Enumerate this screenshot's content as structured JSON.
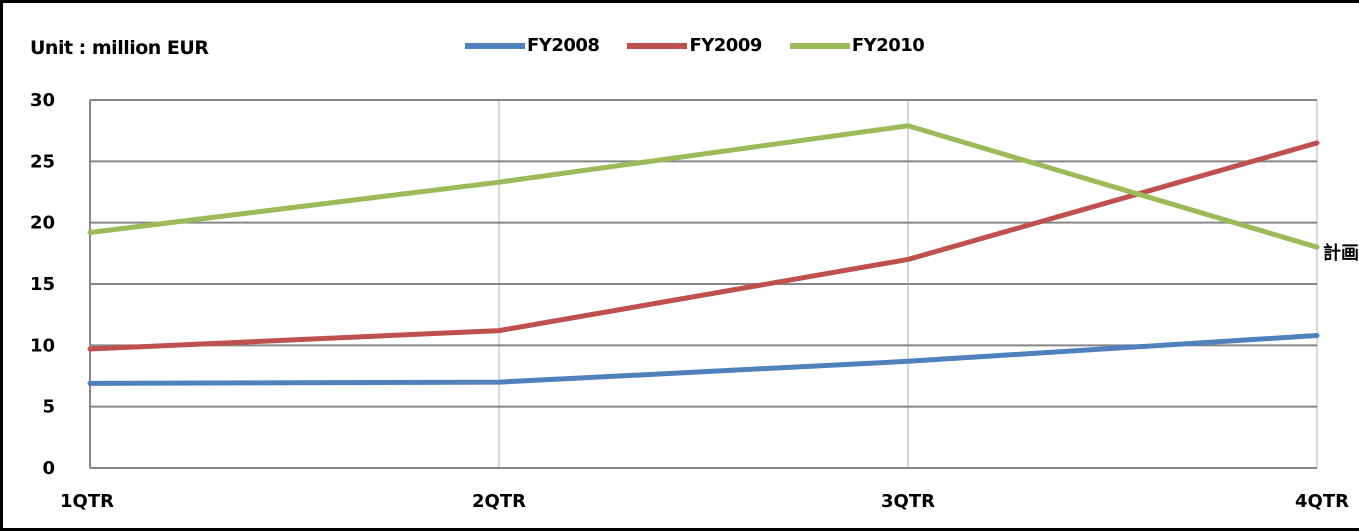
{
  "chart_data": {
    "type": "line",
    "unit_label": "Unit : million EUR",
    "categories": [
      "1QTR",
      "2QTR",
      "3QTR",
      "4QTR"
    ],
    "series": [
      {
        "name": "FY2008",
        "color": "#4f81bd",
        "values": [
          6.9,
          7.0,
          8.7,
          10.8
        ]
      },
      {
        "name": "FY2009",
        "color": "#c0504d",
        "values": [
          9.7,
          11.2,
          17.0,
          26.5
        ]
      },
      {
        "name": "FY2010",
        "color": "#9bbb59",
        "values": [
          19.2,
          23.3,
          27.9,
          18.0
        ]
      }
    ],
    "ylim": [
      0,
      30
    ],
    "yticks": [
      "0",
      "5",
      "10",
      "15",
      "20",
      "25",
      "30"
    ],
    "grid": true,
    "legend_position": "top"
  },
  "side_note": "計画"
}
